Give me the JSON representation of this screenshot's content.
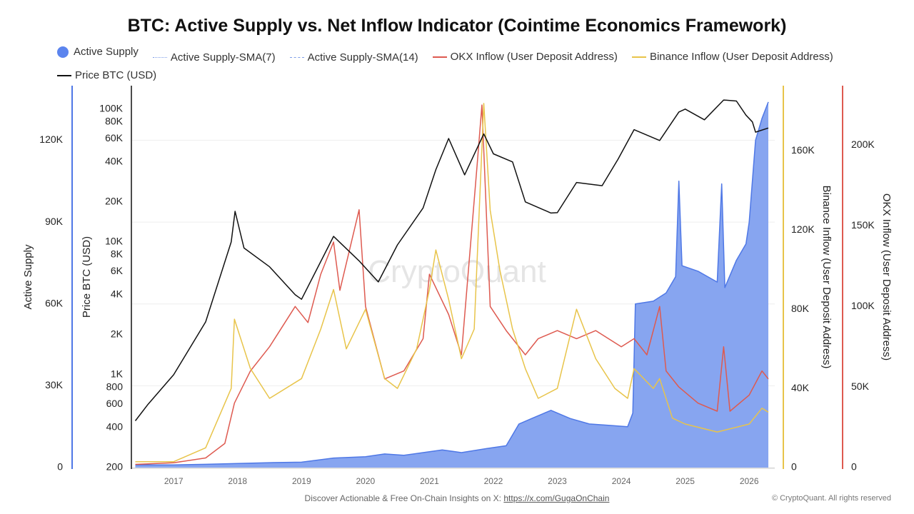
{
  "chart_data": {
    "type": "line",
    "title": "BTC: Active Supply vs. Net Inflow Indicator (Cointime Economics Framework)",
    "x_ticks": [
      "2017",
      "2018",
      "2019",
      "2020",
      "2021",
      "2022",
      "2023",
      "2024",
      "2025",
      "2026"
    ],
    "xlim": [
      2016.35,
      2026.4
    ],
    "axes": {
      "active_supply": {
        "label": "Active Supply",
        "ticks": [
          "0",
          "30K",
          "60K",
          "90K",
          "120K"
        ],
        "tick_values": [
          0,
          30000,
          60000,
          90000,
          120000
        ],
        "range": [
          0,
          140000
        ],
        "color": "#4f78e6",
        "side": "left"
      },
      "price": {
        "label": "Price BTC (USD)",
        "scale": "log",
        "ticks": [
          "200",
          "400",
          "600",
          "800",
          "1K",
          "2K",
          "4K",
          "6K",
          "8K",
          "10K",
          "20K",
          "40K",
          "60K",
          "80K",
          "100K"
        ],
        "tick_values": [
          200,
          400,
          600,
          800,
          1000,
          2000,
          4000,
          6000,
          8000,
          10000,
          20000,
          40000,
          60000,
          80000,
          100000
        ],
        "range": [
          200,
          150000
        ],
        "color": "#111111",
        "side": "left"
      },
      "binance": {
        "label": "Binance Inflow (User Deposit Address)",
        "ticks": [
          "0",
          "40K",
          "80K",
          "120K",
          "160K"
        ],
        "tick_values": [
          0,
          40000,
          80000,
          120000,
          160000
        ],
        "range": [
          0,
          193000
        ],
        "color": "#e8c44a",
        "side": "right"
      },
      "okx": {
        "label": "OKX Inflow (User Deposit Address)",
        "ticks": [
          "0",
          "50K",
          "100K",
          "150K",
          "200K"
        ],
        "tick_values": [
          0,
          50000,
          100000,
          150000,
          200000
        ],
        "range": [
          0,
          237000
        ],
        "color": "#de5a50",
        "side": "right"
      }
    },
    "grid": true,
    "legend_placement": "top",
    "legend": [
      {
        "name": "Active Supply",
        "style": "area",
        "color": "#5b84ee"
      },
      {
        "name": "Active Supply-SMA(7)",
        "style": "dotted",
        "color": "#7f9ee8"
      },
      {
        "name": "Active Supply-SMA(14)",
        "style": "dashed",
        "color": "#7f9ee8"
      },
      {
        "name": "OKX Inflow (User Deposit Address)",
        "style": "line",
        "color": "#de5a50"
      },
      {
        "name": "Binance Inflow (User Deposit Address)",
        "style": "line",
        "color": "#e8c44a"
      },
      {
        "name": "Price BTC (USD)",
        "style": "line",
        "color": "#111111"
      }
    ],
    "series": [
      {
        "name": "Active Supply",
        "axis": "active_supply",
        "points": [
          [
            2016.4,
            1000
          ],
          [
            2017.0,
            1000
          ],
          [
            2017.5,
            1200
          ],
          [
            2018.0,
            1500
          ],
          [
            2018.5,
            1800
          ],
          [
            2019.0,
            2000
          ],
          [
            2019.5,
            3500
          ],
          [
            2020.0,
            4000
          ],
          [
            2020.3,
            5000
          ],
          [
            2020.6,
            4500
          ],
          [
            2020.9,
            5500
          ],
          [
            2021.2,
            6500
          ],
          [
            2021.5,
            5500
          ],
          [
            2021.9,
            7000
          ],
          [
            2022.2,
            8000
          ],
          [
            2022.4,
            16000
          ],
          [
            2022.6,
            18000
          ],
          [
            2022.9,
            21000
          ],
          [
            2023.2,
            18000
          ],
          [
            2023.5,
            16000
          ],
          [
            2023.8,
            15500
          ],
          [
            2024.1,
            15000
          ],
          [
            2024.18,
            20000
          ],
          [
            2024.22,
            60000
          ],
          [
            2024.5,
            61000
          ],
          [
            2024.7,
            64000
          ],
          [
            2024.85,
            70000
          ],
          [
            2024.9,
            105000
          ],
          [
            2024.95,
            74000
          ],
          [
            2025.2,
            72000
          ],
          [
            2025.5,
            68000
          ],
          [
            2025.57,
            104000
          ],
          [
            2025.62,
            66000
          ],
          [
            2025.8,
            76000
          ],
          [
            2025.95,
            82000
          ],
          [
            2026.0,
            90000
          ],
          [
            2026.1,
            120000
          ],
          [
            2026.2,
            128000
          ],
          [
            2026.3,
            134000
          ]
        ]
      },
      {
        "name": "OKX Inflow (User Deposit Address)",
        "axis": "okx",
        "points": [
          [
            2016.4,
            2000
          ],
          [
            2017.0,
            3000
          ],
          [
            2017.5,
            6000
          ],
          [
            2017.8,
            15000
          ],
          [
            2017.95,
            40000
          ],
          [
            2018.2,
            60000
          ],
          [
            2018.5,
            75000
          ],
          [
            2018.9,
            100000
          ],
          [
            2019.1,
            90000
          ],
          [
            2019.3,
            120000
          ],
          [
            2019.5,
            140000
          ],
          [
            2019.6,
            110000
          ],
          [
            2019.9,
            160000
          ],
          [
            2020.0,
            100000
          ],
          [
            2020.3,
            55000
          ],
          [
            2020.6,
            60000
          ],
          [
            2020.9,
            80000
          ],
          [
            2021.0,
            120000
          ],
          [
            2021.3,
            95000
          ],
          [
            2021.5,
            70000
          ],
          [
            2021.75,
            190000
          ],
          [
            2021.82,
            225000
          ],
          [
            2021.95,
            100000
          ],
          [
            2022.2,
            85000
          ],
          [
            2022.5,
            70000
          ],
          [
            2022.7,
            80000
          ],
          [
            2023.0,
            85000
          ],
          [
            2023.3,
            80000
          ],
          [
            2023.6,
            85000
          ],
          [
            2024.0,
            75000
          ],
          [
            2024.2,
            80000
          ],
          [
            2024.4,
            70000
          ],
          [
            2024.6,
            100000
          ],
          [
            2024.7,
            60000
          ],
          [
            2024.9,
            50000
          ],
          [
            2025.2,
            40000
          ],
          [
            2025.5,
            35000
          ],
          [
            2025.6,
            75000
          ],
          [
            2025.7,
            35000
          ],
          [
            2026.0,
            45000
          ],
          [
            2026.2,
            60000
          ],
          [
            2026.3,
            55000
          ]
        ]
      },
      {
        "name": "Binance Inflow (User Deposit Address)",
        "axis": "binance",
        "points": [
          [
            2016.4,
            3000
          ],
          [
            2017.0,
            3000
          ],
          [
            2017.5,
            10000
          ],
          [
            2017.9,
            40000
          ],
          [
            2017.95,
            75000
          ],
          [
            2018.2,
            50000
          ],
          [
            2018.5,
            35000
          ],
          [
            2019.0,
            45000
          ],
          [
            2019.3,
            70000
          ],
          [
            2019.5,
            90000
          ],
          [
            2019.7,
            60000
          ],
          [
            2020.0,
            80000
          ],
          [
            2020.3,
            45000
          ],
          [
            2020.5,
            40000
          ],
          [
            2020.8,
            60000
          ],
          [
            2021.0,
            90000
          ],
          [
            2021.1,
            110000
          ],
          [
            2021.3,
            85000
          ],
          [
            2021.5,
            55000
          ],
          [
            2021.7,
            70000
          ],
          [
            2021.85,
            184000
          ],
          [
            2021.95,
            130000
          ],
          [
            2022.1,
            100000
          ],
          [
            2022.3,
            70000
          ],
          [
            2022.5,
            50000
          ],
          [
            2022.7,
            35000
          ],
          [
            2023.0,
            40000
          ],
          [
            2023.3,
            80000
          ],
          [
            2023.6,
            55000
          ],
          [
            2023.9,
            40000
          ],
          [
            2024.1,
            35000
          ],
          [
            2024.2,
            50000
          ],
          [
            2024.5,
            40000
          ],
          [
            2024.6,
            45000
          ],
          [
            2024.8,
            25000
          ],
          [
            2025.0,
            22000
          ],
          [
            2025.5,
            18000
          ],
          [
            2026.0,
            22000
          ],
          [
            2026.2,
            30000
          ],
          [
            2026.3,
            28000
          ]
        ]
      },
      {
        "name": "Price BTC (USD)",
        "axis": "price",
        "points": [
          [
            2016.4,
            450
          ],
          [
            2016.6,
            600
          ],
          [
            2017.0,
            1000
          ],
          [
            2017.5,
            2500
          ],
          [
            2017.9,
            10000
          ],
          [
            2017.96,
            17000
          ],
          [
            2018.1,
            9000
          ],
          [
            2018.5,
            6500
          ],
          [
            2018.9,
            4000
          ],
          [
            2019.0,
            3700
          ],
          [
            2019.5,
            11000
          ],
          [
            2019.9,
            7200
          ],
          [
            2020.2,
            5000
          ],
          [
            2020.5,
            9500
          ],
          [
            2020.9,
            18000
          ],
          [
            2021.1,
            35000
          ],
          [
            2021.3,
            60000
          ],
          [
            2021.55,
            32000
          ],
          [
            2021.85,
            65000
          ],
          [
            2022.0,
            46000
          ],
          [
            2022.3,
            40000
          ],
          [
            2022.5,
            20000
          ],
          [
            2022.9,
            16500
          ],
          [
            2023.0,
            16600
          ],
          [
            2023.3,
            28000
          ],
          [
            2023.7,
            26500
          ],
          [
            2023.95,
            42000
          ],
          [
            2024.2,
            70000
          ],
          [
            2024.6,
            58000
          ],
          [
            2024.9,
            95000
          ],
          [
            2025.0,
            100000
          ],
          [
            2025.3,
            83000
          ],
          [
            2025.6,
            117000
          ],
          [
            2025.8,
            115000
          ],
          [
            2025.95,
            90000
          ],
          [
            2026.05,
            80000
          ],
          [
            2026.1,
            67000
          ],
          [
            2026.3,
            72000
          ]
        ]
      }
    ]
  },
  "watermark": "CryptoQuant",
  "footer": {
    "text": "Discover Actionable & Free On-Chain Insights on X: ",
    "link": "https://x.com/GugaOnChain",
    "copyright": "© CryptoQuant. All rights reserved"
  }
}
